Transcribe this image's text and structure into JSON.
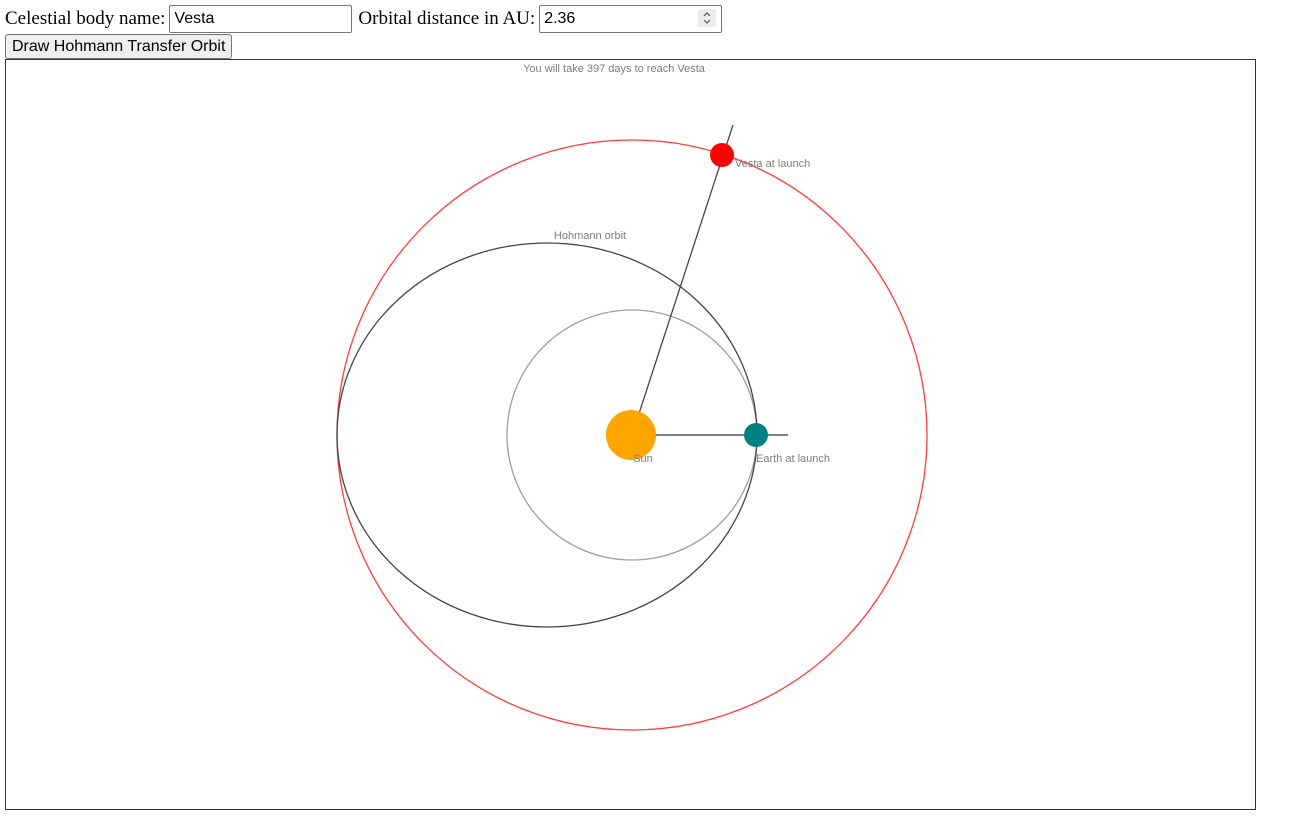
{
  "form": {
    "name_label": "Celestial body name:",
    "name_value": "Vesta",
    "distance_label": "Orbital distance in AU:",
    "distance_value": "2.36",
    "draw_button_label": "Draw Hohmann Transfer Orbit"
  },
  "diagram": {
    "headline": "You will take 397 days to reach Vesta",
    "target_distance_au": 2.36,
    "transfer_days": 397,
    "labels": {
      "sun": "Sun",
      "earth": "Earth at launch",
      "target": "Vesta at launch",
      "transfer": "Hohmann orbit"
    },
    "colors": {
      "sun": "#FFA500",
      "earth": "#008080",
      "target": "#FF0000",
      "target_orbit": "#FF3B3B",
      "earth_orbit": "#A0A0A0",
      "transfer_orbit": "#444444",
      "text": "#7D7D7D"
    }
  }
}
